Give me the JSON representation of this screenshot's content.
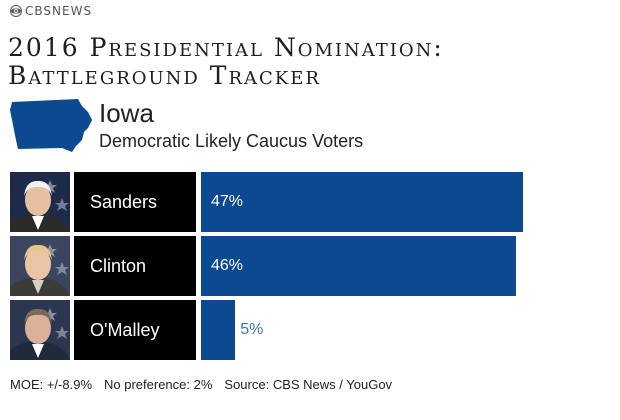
{
  "brand": "CBSNEWS",
  "title_line1": "2016 Presidential Nomination:",
  "title_line2": "Battleground Tracker",
  "state": "Iowa",
  "subtitle": "Democratic Likely Caucus Voters",
  "colors": {
    "bar": "#0b4a91",
    "name_box": "#000000",
    "outside_label": "#3f76b8"
  },
  "chart_data": {
    "type": "bar",
    "orientation": "horizontal",
    "categories": [
      "Sanders",
      "Clinton",
      "O'Malley"
    ],
    "values": [
      47,
      46,
      5
    ],
    "value_labels": [
      "47%",
      "46%",
      "5%"
    ],
    "unit": "%"
  },
  "footer": {
    "moe": "MOE: +/-8.9%",
    "no_preference": "No preference: 2%",
    "source": "Source: CBS News / YouGov"
  }
}
